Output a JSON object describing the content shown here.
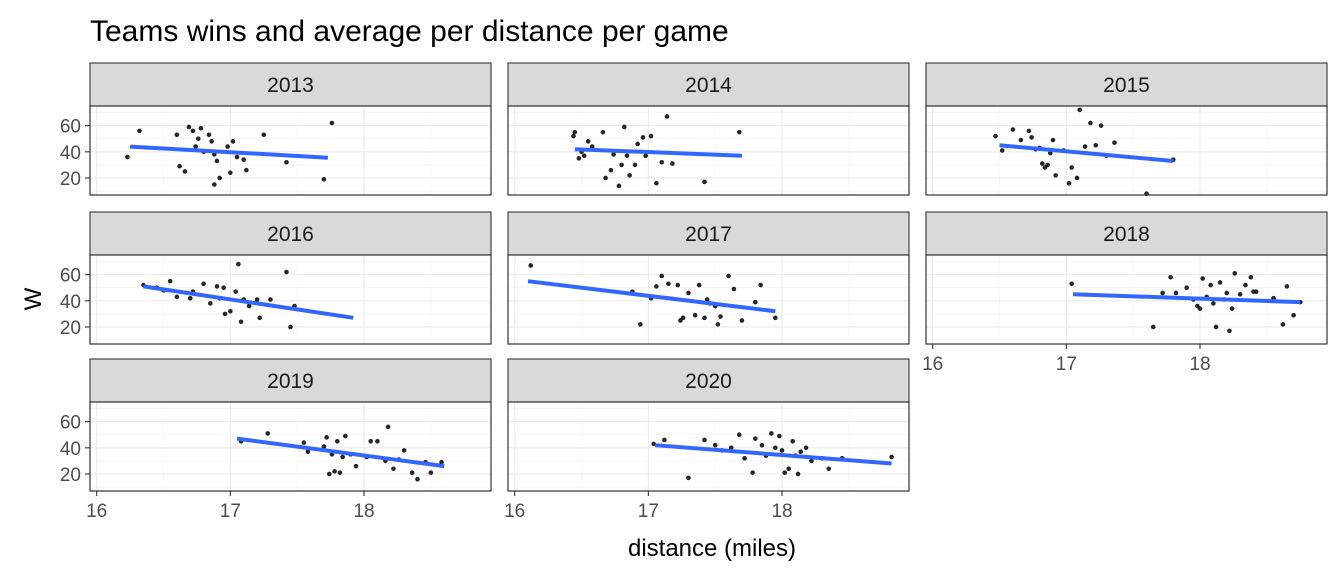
{
  "chart_data": {
    "type": "scatter",
    "title": "Teams wins and average per distance per game",
    "xlabel": "distance (miles)",
    "ylabel": "W",
    "x_ticks": [
      "16",
      "17",
      "18"
    ],
    "y_ticks": [
      "20",
      "40",
      "60"
    ],
    "xlim": [
      15.95,
      18.95
    ],
    "ylim": [
      7,
      75
    ],
    "grid": true,
    "trend_line_color": "#3366ff",
    "facets": [
      {
        "label": "2013",
        "fit": {
          "x": [
            16.25,
            17.73
          ],
          "y": [
            44,
            35.5
          ]
        },
        "points": [
          {
            "x": 16.23,
            "y": 36
          },
          {
            "x": 16.32,
            "y": 56
          },
          {
            "x": 16.6,
            "y": 53
          },
          {
            "x": 16.62,
            "y": 29
          },
          {
            "x": 16.66,
            "y": 25
          },
          {
            "x": 16.69,
            "y": 59
          },
          {
            "x": 16.72,
            "y": 56
          },
          {
            "x": 16.74,
            "y": 44
          },
          {
            "x": 16.76,
            "y": 50
          },
          {
            "x": 16.78,
            "y": 58
          },
          {
            "x": 16.8,
            "y": 40
          },
          {
            "x": 16.84,
            "y": 53
          },
          {
            "x": 16.86,
            "y": 48
          },
          {
            "x": 16.88,
            "y": 38
          },
          {
            "x": 16.88,
            "y": 15
          },
          {
            "x": 16.9,
            "y": 33
          },
          {
            "x": 16.92,
            "y": 20
          },
          {
            "x": 16.98,
            "y": 44
          },
          {
            "x": 17.0,
            "y": 24
          },
          {
            "x": 17.02,
            "y": 48
          },
          {
            "x": 17.05,
            "y": 36
          },
          {
            "x": 17.1,
            "y": 34
          },
          {
            "x": 17.12,
            "y": 26
          },
          {
            "x": 17.25,
            "y": 53
          },
          {
            "x": 17.42,
            "y": 32
          },
          {
            "x": 17.7,
            "y": 19
          },
          {
            "x": 17.76,
            "y": 62
          }
        ]
      },
      {
        "label": "2014",
        "fit": {
          "x": [
            16.45,
            17.7
          ],
          "y": [
            42,
            37
          ]
        },
        "points": [
          {
            "x": 16.44,
            "y": 52
          },
          {
            "x": 16.45,
            "y": 55
          },
          {
            "x": 16.48,
            "y": 35
          },
          {
            "x": 16.5,
            "y": 40
          },
          {
            "x": 16.52,
            "y": 37
          },
          {
            "x": 16.55,
            "y": 48
          },
          {
            "x": 16.58,
            "y": 44
          },
          {
            "x": 16.66,
            "y": 55
          },
          {
            "x": 16.68,
            "y": 20
          },
          {
            "x": 16.72,
            "y": 26
          },
          {
            "x": 16.74,
            "y": 38
          },
          {
            "x": 16.78,
            "y": 14
          },
          {
            "x": 16.8,
            "y": 30
          },
          {
            "x": 16.82,
            "y": 59
          },
          {
            "x": 16.84,
            "y": 37
          },
          {
            "x": 16.86,
            "y": 22
          },
          {
            "x": 16.9,
            "y": 30
          },
          {
            "x": 16.92,
            "y": 46
          },
          {
            "x": 16.96,
            "y": 51
          },
          {
            "x": 16.98,
            "y": 37
          },
          {
            "x": 17.02,
            "y": 52
          },
          {
            "x": 17.06,
            "y": 16
          },
          {
            "x": 17.1,
            "y": 32
          },
          {
            "x": 17.14,
            "y": 67
          },
          {
            "x": 17.18,
            "y": 31
          },
          {
            "x": 17.42,
            "y": 17
          },
          {
            "x": 17.68,
            "y": 55
          }
        ]
      },
      {
        "label": "2015",
        "fit": {
          "x": [
            16.5,
            17.8
          ],
          "y": [
            45,
            33
          ]
        },
        "points": [
          {
            "x": 16.47,
            "y": 52
          },
          {
            "x": 16.52,
            "y": 41
          },
          {
            "x": 16.6,
            "y": 57
          },
          {
            "x": 16.66,
            "y": 49
          },
          {
            "x": 16.72,
            "y": 56
          },
          {
            "x": 16.74,
            "y": 51
          },
          {
            "x": 16.77,
            "y": 42
          },
          {
            "x": 16.8,
            "y": 43
          },
          {
            "x": 16.82,
            "y": 31
          },
          {
            "x": 16.84,
            "y": 28
          },
          {
            "x": 16.86,
            "y": 30
          },
          {
            "x": 16.88,
            "y": 39
          },
          {
            "x": 16.9,
            "y": 49
          },
          {
            "x": 16.92,
            "y": 22
          },
          {
            "x": 16.98,
            "y": 41
          },
          {
            "x": 17.02,
            "y": 16
          },
          {
            "x": 17.04,
            "y": 28
          },
          {
            "x": 17.08,
            "y": 20
          },
          {
            "x": 17.1,
            "y": 72
          },
          {
            "x": 17.14,
            "y": 44
          },
          {
            "x": 17.18,
            "y": 62
          },
          {
            "x": 17.22,
            "y": 45
          },
          {
            "x": 17.26,
            "y": 60
          },
          {
            "x": 17.3,
            "y": 37
          },
          {
            "x": 17.36,
            "y": 47
          },
          {
            "x": 17.6,
            "y": 8
          },
          {
            "x": 17.8,
            "y": 34
          }
        ]
      },
      {
        "label": "2016",
        "fit": {
          "x": [
            16.35,
            17.92
          ],
          "y": [
            51,
            27
          ]
        },
        "points": [
          {
            "x": 16.35,
            "y": 52
          },
          {
            "x": 16.45,
            "y": 50
          },
          {
            "x": 16.5,
            "y": 48
          },
          {
            "x": 16.55,
            "y": 55
          },
          {
            "x": 16.6,
            "y": 43
          },
          {
            "x": 16.7,
            "y": 42
          },
          {
            "x": 16.72,
            "y": 47
          },
          {
            "x": 16.8,
            "y": 53
          },
          {
            "x": 16.85,
            "y": 38
          },
          {
            "x": 16.9,
            "y": 51
          },
          {
            "x": 16.92,
            "y": 42
          },
          {
            "x": 16.95,
            "y": 50
          },
          {
            "x": 16.96,
            "y": 30
          },
          {
            "x": 17.0,
            "y": 32
          },
          {
            "x": 17.04,
            "y": 47
          },
          {
            "x": 17.06,
            "y": 68
          },
          {
            "x": 17.08,
            "y": 24
          },
          {
            "x": 17.1,
            "y": 41
          },
          {
            "x": 17.14,
            "y": 36
          },
          {
            "x": 17.2,
            "y": 41
          },
          {
            "x": 17.22,
            "y": 27
          },
          {
            "x": 17.3,
            "y": 41
          },
          {
            "x": 17.42,
            "y": 62
          },
          {
            "x": 17.45,
            "y": 20
          },
          {
            "x": 17.48,
            "y": 36
          }
        ]
      },
      {
        "label": "2017",
        "fit": {
          "x": [
            16.1,
            17.95
          ],
          "y": [
            55,
            32
          ]
        },
        "points": [
          {
            "x": 16.12,
            "y": 67
          },
          {
            "x": 16.88,
            "y": 47
          },
          {
            "x": 16.94,
            "y": 22
          },
          {
            "x": 17.02,
            "y": 42
          },
          {
            "x": 17.06,
            "y": 51
          },
          {
            "x": 17.1,
            "y": 59
          },
          {
            "x": 17.15,
            "y": 53
          },
          {
            "x": 17.22,
            "y": 52
          },
          {
            "x": 17.24,
            "y": 25
          },
          {
            "x": 17.26,
            "y": 27
          },
          {
            "x": 17.3,
            "y": 46
          },
          {
            "x": 17.35,
            "y": 29
          },
          {
            "x": 17.38,
            "y": 52
          },
          {
            "x": 17.42,
            "y": 27
          },
          {
            "x": 17.44,
            "y": 41
          },
          {
            "x": 17.46,
            "y": 38
          },
          {
            "x": 17.5,
            "y": 36
          },
          {
            "x": 17.52,
            "y": 22
          },
          {
            "x": 17.54,
            "y": 28
          },
          {
            "x": 17.6,
            "y": 59
          },
          {
            "x": 17.64,
            "y": 49
          },
          {
            "x": 17.7,
            "y": 25
          },
          {
            "x": 17.8,
            "y": 39
          },
          {
            "x": 17.84,
            "y": 52
          },
          {
            "x": 17.95,
            "y": 27
          }
        ]
      },
      {
        "label": "2018",
        "fit": {
          "x": [
            17.05,
            18.75
          ],
          "y": [
            45,
            39
          ]
        },
        "points": [
          {
            "x": 17.04,
            "y": 53
          },
          {
            "x": 17.65,
            "y": 20
          },
          {
            "x": 17.72,
            "y": 46
          },
          {
            "x": 17.78,
            "y": 58
          },
          {
            "x": 17.82,
            "y": 46
          },
          {
            "x": 17.9,
            "y": 50
          },
          {
            "x": 17.95,
            "y": 41
          },
          {
            "x": 17.98,
            "y": 36
          },
          {
            "x": 18.0,
            "y": 34
          },
          {
            "x": 18.02,
            "y": 57
          },
          {
            "x": 18.05,
            "y": 43
          },
          {
            "x": 18.08,
            "y": 52
          },
          {
            "x": 18.1,
            "y": 38
          },
          {
            "x": 18.12,
            "y": 20
          },
          {
            "x": 18.15,
            "y": 54
          },
          {
            "x": 18.18,
            "y": 41
          },
          {
            "x": 18.2,
            "y": 46
          },
          {
            "x": 18.22,
            "y": 17
          },
          {
            "x": 18.24,
            "y": 34
          },
          {
            "x": 18.26,
            "y": 61
          },
          {
            "x": 18.3,
            "y": 45
          },
          {
            "x": 18.34,
            "y": 52
          },
          {
            "x": 18.38,
            "y": 58
          },
          {
            "x": 18.4,
            "y": 47
          },
          {
            "x": 18.42,
            "y": 47
          },
          {
            "x": 18.55,
            "y": 42
          },
          {
            "x": 18.62,
            "y": 22
          },
          {
            "x": 18.65,
            "y": 51
          },
          {
            "x": 18.7,
            "y": 29
          },
          {
            "x": 18.75,
            "y": 39
          }
        ]
      },
      {
        "label": "2019",
        "fit": {
          "x": [
            17.05,
            18.6
          ],
          "y": [
            47,
            26
          ]
        },
        "points": [
          {
            "x": 17.08,
            "y": 45
          },
          {
            "x": 17.28,
            "y": 51
          },
          {
            "x": 17.55,
            "y": 44
          },
          {
            "x": 17.58,
            "y": 37
          },
          {
            "x": 17.7,
            "y": 41
          },
          {
            "x": 17.72,
            "y": 48
          },
          {
            "x": 17.74,
            "y": 20
          },
          {
            "x": 17.76,
            "y": 35
          },
          {
            "x": 17.78,
            "y": 22
          },
          {
            "x": 17.8,
            "y": 45
          },
          {
            "x": 17.82,
            "y": 21
          },
          {
            "x": 17.84,
            "y": 33
          },
          {
            "x": 17.86,
            "y": 49
          },
          {
            "x": 17.9,
            "y": 35
          },
          {
            "x": 17.94,
            "y": 26
          },
          {
            "x": 18.02,
            "y": 33
          },
          {
            "x": 18.05,
            "y": 45
          },
          {
            "x": 18.1,
            "y": 45
          },
          {
            "x": 18.16,
            "y": 30
          },
          {
            "x": 18.18,
            "y": 56
          },
          {
            "x": 18.22,
            "y": 24
          },
          {
            "x": 18.26,
            "y": 31
          },
          {
            "x": 18.3,
            "y": 38
          },
          {
            "x": 18.36,
            "y": 21
          },
          {
            "x": 18.4,
            "y": 16
          },
          {
            "x": 18.46,
            "y": 29
          },
          {
            "x": 18.5,
            "y": 21
          },
          {
            "x": 18.58,
            "y": 29
          }
        ]
      },
      {
        "label": "2020",
        "fit": {
          "x": [
            17.05,
            18.82
          ],
          "y": [
            42,
            28
          ]
        },
        "points": [
          {
            "x": 17.04,
            "y": 43
          },
          {
            "x": 17.12,
            "y": 46
          },
          {
            "x": 17.3,
            "y": 17
          },
          {
            "x": 17.42,
            "y": 46
          },
          {
            "x": 17.5,
            "y": 42
          },
          {
            "x": 17.55,
            "y": 38
          },
          {
            "x": 17.62,
            "y": 40
          },
          {
            "x": 17.68,
            "y": 50
          },
          {
            "x": 17.72,
            "y": 32
          },
          {
            "x": 17.78,
            "y": 21
          },
          {
            "x": 17.8,
            "y": 47
          },
          {
            "x": 17.85,
            "y": 42
          },
          {
            "x": 17.88,
            "y": 34
          },
          {
            "x": 17.92,
            "y": 51
          },
          {
            "x": 17.95,
            "y": 40
          },
          {
            "x": 17.98,
            "y": 49
          },
          {
            "x": 18.0,
            "y": 38
          },
          {
            "x": 18.02,
            "y": 21
          },
          {
            "x": 18.05,
            "y": 24
          },
          {
            "x": 18.08,
            "y": 45
          },
          {
            "x": 18.1,
            "y": 34
          },
          {
            "x": 18.12,
            "y": 20
          },
          {
            "x": 18.14,
            "y": 37
          },
          {
            "x": 18.18,
            "y": 40
          },
          {
            "x": 18.22,
            "y": 30
          },
          {
            "x": 18.3,
            "y": 32
          },
          {
            "x": 18.35,
            "y": 24
          },
          {
            "x": 18.45,
            "y": 32
          },
          {
            "x": 18.82,
            "y": 33
          }
        ]
      }
    ]
  }
}
